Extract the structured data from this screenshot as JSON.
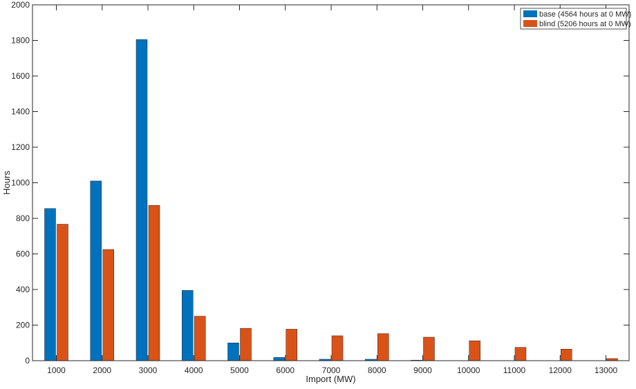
{
  "chart_data": {
    "type": "bar",
    "title": "",
    "xlabel": "Import (MW)",
    "ylabel": "Hours",
    "ylim": [
      0,
      2000
    ],
    "yticks": [
      0,
      200,
      400,
      600,
      800,
      1000,
      1200,
      1400,
      1600,
      1800,
      2000
    ],
    "categories": [
      "1000",
      "2000",
      "3000",
      "4000",
      "5000",
      "6000",
      "7000",
      "8000",
      "9000",
      "10000",
      "11000",
      "12000",
      "13000"
    ],
    "series": [
      {
        "name": "base (4564 hours at 0 MW)",
        "color": "#0072BD",
        "values": [
          855,
          1010,
          1805,
          395,
          100,
          18,
          8,
          8,
          3,
          0,
          0,
          0,
          0
        ]
      },
      {
        "name": "blind (5206 hours at 0 MW)",
        "color": "#D95319",
        "values": [
          767,
          625,
          873,
          250,
          182,
          177,
          140,
          152,
          132,
          112,
          75,
          65,
          12
        ]
      }
    ],
    "grid": false,
    "legend_position": "top-right"
  }
}
